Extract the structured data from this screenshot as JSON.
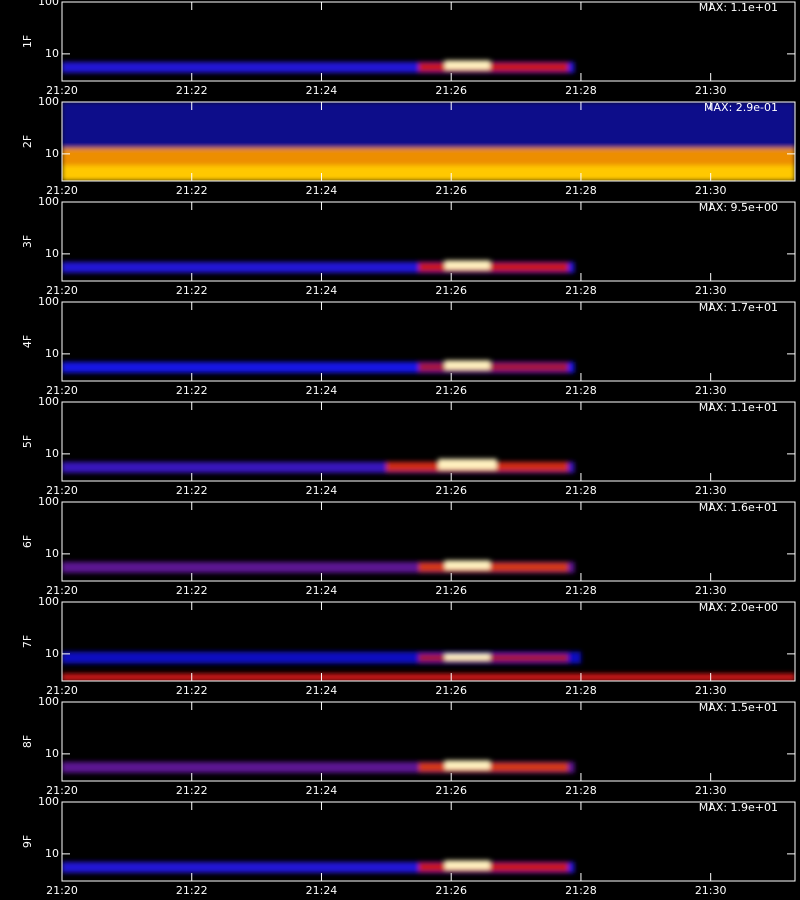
{
  "chart_data": {
    "type": "spectrogram",
    "xlim": [
      0,
      11.3
    ],
    "xticks": [
      {
        "value": 0,
        "label": "21:20"
      },
      {
        "value": 2,
        "label": "21:22"
      },
      {
        "value": 4,
        "label": "21:24"
      },
      {
        "value": 6,
        "label": "21:26"
      },
      {
        "value": 8,
        "label": "21:28"
      },
      {
        "value": 10,
        "label": "21:30"
      }
    ],
    "ylim": [
      3,
      100
    ],
    "log_y": true,
    "yticks": [
      10,
      100
    ],
    "panels": [
      {
        "label": "1F",
        "max_label": "MAX: 1.1e+01",
        "patches": [
          {
            "t": [
              0,
              7.9
            ],
            "f": [
              4.3,
              7
            ],
            "level": 0.32
          },
          {
            "t": [
              5.5,
              7.8
            ],
            "f": [
              4.5,
              6.8
            ],
            "level": 0.55
          },
          {
            "t": [
              5.9,
              6.6
            ],
            "f": [
              5,
              7.5
            ],
            "level": 0.95
          }
        ]
      },
      {
        "label": "2F",
        "max_label": "MAX: 2.9e-01",
        "patches": [
          {
            "t": [
              0,
              11.3
            ],
            "f": [
              13,
              100
            ],
            "level": 0.18
          },
          {
            "t": [
              0,
              11.3
            ],
            "f": [
              3,
              13
            ],
            "level": 0.72
          },
          {
            "t": [
              0,
              11.3
            ],
            "f": [
              3,
              6
            ],
            "level": 0.8
          }
        ]
      },
      {
        "label": "3F",
        "max_label": "MAX: 9.5e+00",
        "patches": [
          {
            "t": [
              0,
              7.9
            ],
            "f": [
              4.3,
              7
            ],
            "level": 0.32
          },
          {
            "t": [
              5.5,
              7.8
            ],
            "f": [
              4.5,
              6.8
            ],
            "level": 0.55
          },
          {
            "t": [
              5.9,
              6.6
            ],
            "f": [
              5,
              7.5
            ],
            "level": 0.95
          }
        ]
      },
      {
        "label": "4F",
        "max_label": "MAX: 1.7e+01",
        "patches": [
          {
            "t": [
              0,
              7.9
            ],
            "f": [
              4.3,
              7
            ],
            "level": 0.3
          },
          {
            "t": [
              5.5,
              7.8
            ],
            "f": [
              4.5,
              6.8
            ],
            "level": 0.5
          },
          {
            "t": [
              5.9,
              6.6
            ],
            "f": [
              5,
              7.5
            ],
            "level": 0.95
          }
        ]
      },
      {
        "label": "5F",
        "max_label": "MAX: 1.1e+01",
        "patches": [
          {
            "t": [
              0,
              7.9
            ],
            "f": [
              4.3,
              7
            ],
            "level": 0.35
          },
          {
            "t": [
              5,
              7.8
            ],
            "f": [
              4.5,
              7
            ],
            "level": 0.58
          },
          {
            "t": [
              5.8,
              6.7
            ],
            "f": [
              5,
              8
            ],
            "level": 0.95
          }
        ]
      },
      {
        "label": "6F",
        "max_label": "MAX: 1.6e+01",
        "patches": [
          {
            "t": [
              0,
              7.9
            ],
            "f": [
              4.3,
              7
            ],
            "level": 0.4
          },
          {
            "t": [
              5.5,
              7.8
            ],
            "f": [
              4.5,
              6.8
            ],
            "level": 0.6
          },
          {
            "t": [
              5.9,
              6.6
            ],
            "f": [
              5,
              7.5
            ],
            "level": 0.95
          }
        ]
      },
      {
        "label": "7F",
        "max_label": "MAX: 2.0e+00",
        "patches": [
          {
            "t": [
              0,
              8
            ],
            "f": [
              6.5,
              11
            ],
            "level": 0.25
          },
          {
            "t": [
              0,
              11.3
            ],
            "f": [
              3,
              4.2
            ],
            "level": 0.55
          },
          {
            "t": [
              5.5,
              7.8
            ],
            "f": [
              7,
              10
            ],
            "level": 0.5
          },
          {
            "t": [
              5.9,
              6.6
            ],
            "f": [
              7.5,
              10
            ],
            "level": 0.95
          }
        ]
      },
      {
        "label": "8F",
        "max_label": "MAX: 1.5e+01",
        "patches": [
          {
            "t": [
              0,
              7.9
            ],
            "f": [
              4.3,
              7
            ],
            "level": 0.4
          },
          {
            "t": [
              5.5,
              7.8
            ],
            "f": [
              4.5,
              6.8
            ],
            "level": 0.6
          },
          {
            "t": [
              5.9,
              6.6
            ],
            "f": [
              5,
              7.5
            ],
            "level": 0.95
          }
        ]
      },
      {
        "label": "9F",
        "max_label": "MAX: 1.9e+01",
        "patches": [
          {
            "t": [
              0,
              7.9
            ],
            "f": [
              4.3,
              7
            ],
            "level": 0.32
          },
          {
            "t": [
              5.5,
              7.8
            ],
            "f": [
              4.5,
              6.8
            ],
            "level": 0.55
          },
          {
            "t": [
              5.9,
              6.6
            ],
            "f": [
              5,
              7.5
            ],
            "level": 0.95
          }
        ]
      }
    ]
  }
}
